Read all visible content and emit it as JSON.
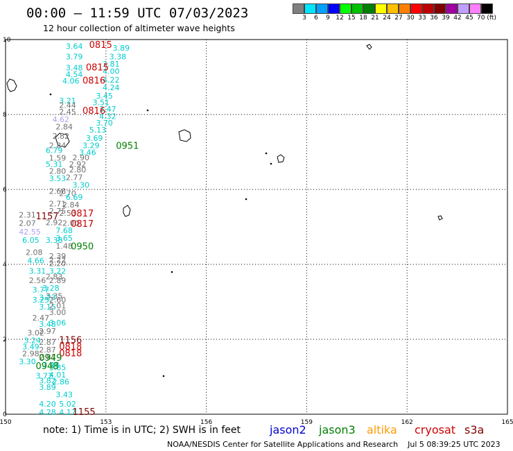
{
  "title": "00:00 — 11:59 UTC 07/03/2023",
  "subtitle": "12 hour collection of altimeter wave heights",
  "scale": {
    "colors": [
      "#808080",
      "#00e5ff",
      "#00a0ff",
      "#0000ff",
      "#00ff00",
      "#00c000",
      "#008000",
      "#ffff00",
      "#ffc000",
      "#ff8000",
      "#ff0000",
      "#c00000",
      "#800000",
      "#a000a0",
      "#c0a0ff",
      "#ff80ff",
      "#000000"
    ],
    "labels": [
      "3",
      "6",
      "9",
      "12",
      "15",
      "18",
      "21",
      "24",
      "27",
      "30",
      "33",
      "36",
      "39",
      "42",
      "45",
      "70 (ft)"
    ]
  },
  "map": {
    "lon_min": 150,
    "lon_max": 165,
    "lat_min": 0,
    "lat_max": 10,
    "x_ticks": [
      "150",
      "153",
      "156",
      "159",
      "162",
      "165"
    ],
    "y_ticks": [
      "0",
      "2",
      "4",
      "6",
      "8",
      "10"
    ]
  },
  "colors": {
    "jason2": "#0000cc",
    "jason3": "#008000",
    "altika": "#ff9900",
    "cryosat": "#cc0000",
    "s3a": "#800000",
    "grey": "#707070",
    "cyan": "#00cccc",
    "lilac": "#b0a0f0"
  },
  "swh_labels": [
    {
      "lon": 151.8,
      "lat": 9.75,
      "text": "3.64",
      "c": "cyan"
    },
    {
      "lon": 153.2,
      "lat": 9.7,
      "text": "3.89",
      "c": "cyan"
    },
    {
      "lon": 151.8,
      "lat": 9.47,
      "text": "3.79",
      "c": "cyan"
    },
    {
      "lon": 153.1,
      "lat": 9.47,
      "text": "3.38",
      "c": "cyan"
    },
    {
      "lon": 152.9,
      "lat": 9.28,
      "text": "3.81",
      "c": "cyan"
    },
    {
      "lon": 151.8,
      "lat": 9.18,
      "text": "3.48",
      "c": "cyan"
    },
    {
      "lon": 152.9,
      "lat": 9.08,
      "text": "4.00",
      "c": "cyan"
    },
    {
      "lon": 151.8,
      "lat": 9.0,
      "text": "4.54",
      "c": "cyan"
    },
    {
      "lon": 151.7,
      "lat": 8.82,
      "text": "4.06",
      "c": "cyan"
    },
    {
      "lon": 152.9,
      "lat": 8.85,
      "text": "4.22",
      "c": "cyan"
    },
    {
      "lon": 152.9,
      "lat": 8.65,
      "text": "4.24",
      "c": "cyan"
    },
    {
      "lon": 152.7,
      "lat": 8.43,
      "text": "3.45",
      "c": "cyan"
    },
    {
      "lon": 151.6,
      "lat": 8.3,
      "text": "3.21",
      "c": "cyan"
    },
    {
      "lon": 152.6,
      "lat": 8.25,
      "text": "3.51",
      "c": "cyan"
    },
    {
      "lon": 151.6,
      "lat": 8.18,
      "text": "2.44",
      "c": "grey"
    },
    {
      "lon": 152.8,
      "lat": 8.07,
      "text": "3.47",
      "c": "cyan"
    },
    {
      "lon": 151.6,
      "lat": 8.0,
      "text": "2.45",
      "c": "grey"
    },
    {
      "lon": 152.8,
      "lat": 7.88,
      "text": "4.32",
      "c": "cyan"
    },
    {
      "lon": 151.4,
      "lat": 7.8,
      "text": "4.62",
      "c": "lilac"
    },
    {
      "lon": 152.7,
      "lat": 7.7,
      "text": "3.70",
      "c": "cyan"
    },
    {
      "lon": 151.5,
      "lat": 7.6,
      "text": "2.84",
      "c": "grey"
    },
    {
      "lon": 152.5,
      "lat": 7.52,
      "text": "5.13",
      "c": "cyan"
    },
    {
      "lon": 151.4,
      "lat": 7.35,
      "text": "2.82",
      "c": "grey"
    },
    {
      "lon": 152.4,
      "lat": 7.3,
      "text": "3.69",
      "c": "cyan"
    },
    {
      "lon": 151.3,
      "lat": 7.1,
      "text": "2.84",
      "c": "grey"
    },
    {
      "lon": 152.3,
      "lat": 7.1,
      "text": "3.29",
      "c": "cyan"
    },
    {
      "lon": 151.2,
      "lat": 6.97,
      "text": "6.79",
      "c": "cyan"
    },
    {
      "lon": 152.2,
      "lat": 6.92,
      "text": "3.46",
      "c": "cyan"
    },
    {
      "lon": 151.3,
      "lat": 6.77,
      "text": "1.59",
      "c": "grey"
    },
    {
      "lon": 152.0,
      "lat": 6.78,
      "text": "2.90",
      "c": "grey"
    },
    {
      "lon": 151.2,
      "lat": 6.6,
      "text": "5.31",
      "c": "cyan"
    },
    {
      "lon": 151.9,
      "lat": 6.6,
      "text": "2.92",
      "c": "grey"
    },
    {
      "lon": 151.3,
      "lat": 6.42,
      "text": "2.80",
      "c": "grey"
    },
    {
      "lon": 151.9,
      "lat": 6.45,
      "text": "2.80",
      "c": "grey"
    },
    {
      "lon": 151.3,
      "lat": 6.22,
      "text": "3.53",
      "c": "cyan"
    },
    {
      "lon": 151.8,
      "lat": 6.25,
      "text": "2.77",
      "c": "grey"
    },
    {
      "lon": 152.0,
      "lat": 6.05,
      "text": "3.30",
      "c": "cyan"
    },
    {
      "lon": 151.3,
      "lat": 5.88,
      "text": "2.68",
      "c": "grey"
    },
    {
      "lon": 151.6,
      "lat": 5.82,
      "text": "2.70",
      "c": "grey"
    },
    {
      "lon": 151.8,
      "lat": 5.72,
      "text": "6.69",
      "c": "cyan"
    },
    {
      "lon": 151.3,
      "lat": 5.55,
      "text": "2.71",
      "c": "grey"
    },
    {
      "lon": 151.7,
      "lat": 5.52,
      "text": "2.84",
      "c": "grey"
    },
    {
      "lon": 151.3,
      "lat": 5.35,
      "text": "2.75",
      "c": "grey"
    },
    {
      "lon": 151.6,
      "lat": 5.3,
      "text": "2.53",
      "c": "grey"
    },
    {
      "lon": 150.4,
      "lat": 5.25,
      "text": "2.31",
      "c": "grey"
    },
    {
      "lon": 151.2,
      "lat": 5.05,
      "text": "2.92",
      "c": "grey"
    },
    {
      "lon": 151.7,
      "lat": 5.03,
      "text": "2.00",
      "c": "grey"
    },
    {
      "lon": 150.4,
      "lat": 5.03,
      "text": "2.07",
      "c": "grey"
    },
    {
      "lon": 151.5,
      "lat": 4.83,
      "text": "7.68",
      "c": "cyan"
    },
    {
      "lon": 150.4,
      "lat": 4.8,
      "text": "42.55",
      "c": "lilac"
    },
    {
      "lon": 151.5,
      "lat": 4.63,
      "text": "3.65",
      "c": "cyan"
    },
    {
      "lon": 151.2,
      "lat": 4.57,
      "text": "3.38",
      "c": "cyan"
    },
    {
      "lon": 150.5,
      "lat": 4.57,
      "text": "6.05",
      "c": "cyan"
    },
    {
      "lon": 151.5,
      "lat": 4.42,
      "text": "1.48",
      "c": "grey"
    },
    {
      "lon": 150.6,
      "lat": 4.25,
      "text": "2.08",
      "c": "grey"
    },
    {
      "lon": 151.3,
      "lat": 4.15,
      "text": "2.39",
      "c": "grey"
    },
    {
      "lon": 151.3,
      "lat": 4.05,
      "text": "2.22",
      "c": "grey"
    },
    {
      "lon": 150.65,
      "lat": 4.03,
      "text": "4.66",
      "c": "cyan"
    },
    {
      "lon": 151.3,
      "lat": 3.95,
      "text": "2.20",
      "c": "grey"
    },
    {
      "lon": 151.3,
      "lat": 3.75,
      "text": "3.22",
      "c": "cyan"
    },
    {
      "lon": 150.7,
      "lat": 3.75,
      "text": "3.31",
      "c": "cyan"
    },
    {
      "lon": 150.7,
      "lat": 3.5,
      "text": "2.56",
      "c": "grey"
    },
    {
      "lon": 151.2,
      "lat": 3.6,
      "text": "2.83",
      "c": "grey"
    },
    {
      "lon": 151.3,
      "lat": 3.5,
      "text": "2.89",
      "c": "grey"
    },
    {
      "lon": 151.1,
      "lat": 3.3,
      "text": "3.28",
      "c": "cyan"
    },
    {
      "lon": 150.8,
      "lat": 3.25,
      "text": "3.77",
      "c": "cyan"
    },
    {
      "lon": 151.2,
      "lat": 3.08,
      "text": "3.35",
      "c": "grey"
    },
    {
      "lon": 151.0,
      "lat": 3.05,
      "text": "3.23",
      "c": "cyan"
    },
    {
      "lon": 151.3,
      "lat": 2.98,
      "text": "2.60",
      "c": "grey"
    },
    {
      "lon": 150.8,
      "lat": 2.98,
      "text": "3.25",
      "c": "cyan"
    },
    {
      "lon": 151.0,
      "lat": 2.8,
      "text": "3.15",
      "c": "cyan"
    },
    {
      "lon": 151.3,
      "lat": 2.82,
      "text": "2.01",
      "c": "grey"
    },
    {
      "lon": 151.3,
      "lat": 2.65,
      "text": "3.00",
      "c": "grey"
    },
    {
      "lon": 150.8,
      "lat": 2.5,
      "text": "2.47",
      "c": "grey"
    },
    {
      "lon": 151.3,
      "lat": 2.37,
      "text": "3.06",
      "c": "cyan"
    },
    {
      "lon": 151.0,
      "lat": 2.33,
      "text": "3.48",
      "c": "cyan"
    },
    {
      "lon": 151.0,
      "lat": 2.15,
      "text": "2.97",
      "c": "grey"
    },
    {
      "lon": 150.65,
      "lat": 2.1,
      "text": "3.02",
      "c": "grey"
    },
    {
      "lon": 150.55,
      "lat": 1.9,
      "text": "3.24",
      "c": "cyan"
    },
    {
      "lon": 151.0,
      "lat": 1.85,
      "text": "2.87",
      "c": "grey"
    },
    {
      "lon": 150.5,
      "lat": 1.73,
      "text": "3.49",
      "c": "cyan"
    },
    {
      "lon": 151.0,
      "lat": 1.65,
      "text": "2.87",
      "c": "grey"
    },
    {
      "lon": 150.5,
      "lat": 1.55,
      "text": "2.98",
      "c": "grey"
    },
    {
      "lon": 151.0,
      "lat": 1.45,
      "text": "2.87",
      "c": "grey"
    },
    {
      "lon": 150.4,
      "lat": 1.33,
      "text": "3.30",
      "c": "cyan"
    },
    {
      "lon": 151.1,
      "lat": 1.25,
      "text": "3.48",
      "c": "cyan"
    },
    {
      "lon": 151.3,
      "lat": 1.18,
      "text": "3.85",
      "c": "cyan"
    },
    {
      "lon": 151.3,
      "lat": 0.98,
      "text": "4.01",
      "c": "cyan"
    },
    {
      "lon": 150.9,
      "lat": 0.95,
      "text": "3.72",
      "c": "cyan"
    },
    {
      "lon": 151.0,
      "lat": 0.82,
      "text": "3.82",
      "c": "cyan"
    },
    {
      "lon": 151.4,
      "lat": 0.8,
      "text": "2.86",
      "c": "cyan"
    },
    {
      "lon": 151.0,
      "lat": 0.65,
      "text": "3.89",
      "c": "cyan"
    },
    {
      "lon": 151.5,
      "lat": 0.45,
      "text": "3.43",
      "c": "cyan"
    },
    {
      "lon": 151.0,
      "lat": 0.2,
      "text": "4.20",
      "c": "cyan"
    },
    {
      "lon": 151.6,
      "lat": 0.2,
      "text": "5.02",
      "c": "cyan"
    },
    {
      "lon": 151.0,
      "lat": -0.02,
      "text": "4.28",
      "c": "cyan"
    },
    {
      "lon": 151.6,
      "lat": -0.02,
      "text": "4.17",
      "c": "cyan"
    }
  ],
  "time_labels": [
    {
      "lon": 152.5,
      "lat": 9.78,
      "text": "0815",
      "sat": "cryosat"
    },
    {
      "lon": 152.4,
      "lat": 9.18,
      "text": "0815",
      "sat": "cryosat"
    },
    {
      "lon": 152.3,
      "lat": 8.82,
      "text": "0816",
      "sat": "cryosat"
    },
    {
      "lon": 152.3,
      "lat": 8.02,
      "text": "0816",
      "sat": "cryosat"
    },
    {
      "lon": 153.3,
      "lat": 7.08,
      "text": "0951",
      "sat": "jason3"
    },
    {
      "lon": 150.9,
      "lat": 5.2,
      "text": "1157",
      "sat": "s3a"
    },
    {
      "lon": 151.95,
      "lat": 5.28,
      "text": "0817",
      "sat": "cryosat"
    },
    {
      "lon": 151.95,
      "lat": 5.0,
      "text": "0817",
      "sat": "cryosat"
    },
    {
      "lon": 151.95,
      "lat": 4.4,
      "text": "0950",
      "sat": "jason3"
    },
    {
      "lon": 151.6,
      "lat": 1.9,
      "text": "1156",
      "sat": "s3a"
    },
    {
      "lon": 151.6,
      "lat": 1.72,
      "text": "0818",
      "sat": "cryosat"
    },
    {
      "lon": 151.6,
      "lat": 1.55,
      "text": "0818",
      "sat": "cryosat"
    },
    {
      "lon": 151.0,
      "lat": 1.43,
      "text": "0949",
      "sat": "jason3"
    },
    {
      "lon": 150.9,
      "lat": 1.2,
      "text": "0948",
      "sat": "jason3"
    },
    {
      "lon": 152.0,
      "lat": -0.02,
      "text": "1155",
      "sat": "s3a"
    }
  ],
  "note": "note:  1) Time is in UTC;  2) SWH is in feet",
  "legend": [
    {
      "label": "jason2",
      "sat": "jason2"
    },
    {
      "label": "jason3",
      "sat": "jason3"
    },
    {
      "label": "altika",
      "sat": "altika"
    },
    {
      "label": "cryosat",
      "sat": "cryosat"
    },
    {
      "label": "s3a",
      "sat": "s3a"
    }
  ],
  "credit": "NOAA/NESDIS Center for Satellite Applications and Research",
  "timestamp": "Jul  5 08:39:25 UTC 2023"
}
